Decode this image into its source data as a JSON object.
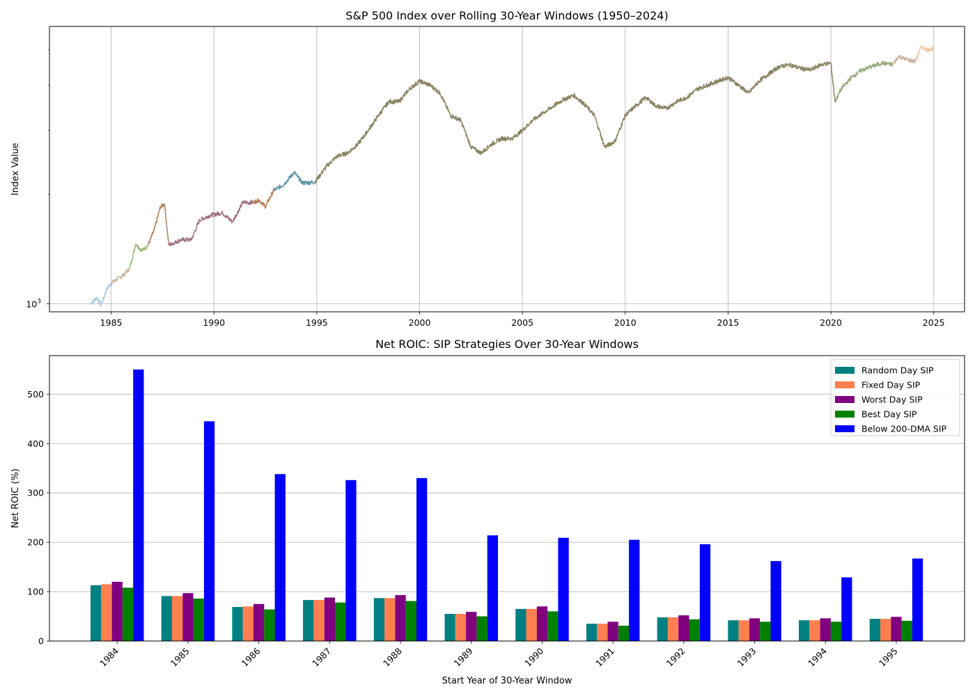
{
  "chart_data": [
    {
      "type": "line",
      "title": "S&P 500 Index over Rolling 30-Year Windows (1950–2024)",
      "xlabel": "",
      "ylabel": "Index Value",
      "yscale": "log",
      "grid": true,
      "xlim": [
        1982.0,
        2026.5
      ],
      "ylim": [
        950,
        5800
      ],
      "x_ticks": [
        "1985",
        "1990",
        "1995",
        "2000",
        "2005",
        "2010",
        "2015",
        "2020",
        "2025"
      ],
      "y_ticks": [
        {
          "label_base": "10",
          "label_exp": "3",
          "value": 1000
        }
      ],
      "series": [
        {
          "color": "#a7c9e6",
          "x": [
            1984.0,
            1984.3,
            1984.5,
            1984.8,
            1985.0
          ],
          "y": [
            1000,
            1040,
            990,
            1100,
            1140
          ]
        },
        {
          "color": "#c9b49e",
          "x": [
            1985.0,
            1985.3,
            1985.6,
            1985.9
          ],
          "y": [
            1140,
            1170,
            1200,
            1250
          ]
        },
        {
          "color": "#9fb87e",
          "x": [
            1985.9,
            1986.2,
            1986.5,
            1986.8
          ],
          "y": [
            1250,
            1460,
            1400,
            1450
          ]
        },
        {
          "color": "#b37e57",
          "x": [
            1986.8,
            1987.1,
            1987.4,
            1987.6,
            1987.8
          ],
          "y": [
            1450,
            1600,
            1850,
            1880,
            1450
          ]
        },
        {
          "color": "#a07181",
          "x": [
            1987.8,
            1988.4,
            1988.9,
            1989.3,
            1989.8,
            1990.4,
            1990.9,
            1991.4,
            1991.9
          ],
          "y": [
            1450,
            1500,
            1500,
            1700,
            1750,
            1780,
            1680,
            1900,
            1900
          ]
        },
        {
          "color": "#b48058",
          "x": [
            1991.9,
            1992.2,
            1992.5,
            1992.9
          ],
          "y": [
            1900,
            1930,
            1850,
            2050
          ]
        },
        {
          "color": "#5f93a4",
          "x": [
            1992.9,
            1993.4,
            1993.9,
            1994.3,
            1994.9
          ],
          "y": [
            2050,
            2130,
            2300,
            2150,
            2160
          ]
        },
        {
          "color": "#8a8464",
          "x": [
            1994.9,
            1995.5,
            1996.0,
            1996.5,
            1997.0,
            1997.5,
            1998.0,
            1998.5,
            1999.0,
            1999.5,
            2000.0,
            2000.5,
            2001.0,
            2001.5,
            2002.0,
            2002.5,
            2003.0,
            2003.5,
            2004.0,
            2004.5,
            2005.0,
            2005.5,
            2006.0,
            2006.5,
            2007.0,
            2007.5,
            2008.0,
            2008.5,
            2009.0,
            2009.5,
            2010.0,
            2010.5,
            2011.0,
            2011.5,
            2012.0,
            2012.5,
            2013.0,
            2013.5,
            2014.0,
            2014.5,
            2015.0,
            2015.5,
            2016.0,
            2016.5,
            2017.0,
            2017.5,
            2018.0,
            2018.5,
            2019.0,
            2019.5,
            2020.0,
            2020.2
          ],
          "y": [
            2160,
            2400,
            2550,
            2600,
            2750,
            3000,
            3300,
            3600,
            3600,
            3900,
            4100,
            4000,
            3800,
            3300,
            3200,
            2700,
            2600,
            2750,
            2850,
            2850,
            3000,
            3200,
            3350,
            3500,
            3650,
            3750,
            3550,
            3300,
            2700,
            2800,
            3300,
            3500,
            3700,
            3500,
            3450,
            3600,
            3700,
            3900,
            4000,
            4100,
            4200,
            4000,
            3800,
            4100,
            4300,
            4500,
            4550,
            4450,
            4400,
            4550,
            4600,
            3600
          ]
        },
        {
          "color": "#9aab82",
          "x": [
            2020.2,
            2020.5,
            2021.0,
            2021.5,
            2022.0,
            2022.5,
            2023.0
          ],
          "y": [
            3600,
            3900,
            4200,
            4400,
            4500,
            4600,
            4550
          ]
        },
        {
          "color": "#c9b4a4",
          "x": [
            2023.0,
            2023.3,
            2023.7,
            2024.1
          ],
          "y": [
            4550,
            4800,
            4700,
            4650
          ]
        },
        {
          "color": "#f2c79e",
          "x": [
            2024.1,
            2024.4,
            2024.7,
            2025.0
          ],
          "y": [
            4650,
            5100,
            5000,
            5050
          ]
        }
      ]
    },
    {
      "type": "bar",
      "title": "Net ROIC: SIP Strategies Over 30-Year Windows",
      "xlabel": "Start Year of 30-Year Window",
      "ylabel": "Net ROIC (%)",
      "grid": true,
      "legend": "top-right",
      "ylim": [
        0,
        578
      ],
      "y_ticks": [
        "0",
        "100",
        "200",
        "300",
        "400",
        "500"
      ],
      "categories": [
        "1984",
        "1985",
        "1986",
        "1987",
        "1988",
        "1989",
        "1990",
        "1991",
        "1992",
        "1993",
        "1994",
        "1995"
      ],
      "series": [
        {
          "name": "Random Day SIP",
          "color": "#008080",
          "values": [
            113,
            91,
            69,
            83,
            87,
            55,
            65,
            35,
            48,
            42,
            42,
            45
          ]
        },
        {
          "name": "Fixed Day SIP",
          "color": "#ff7f50",
          "values": [
            115,
            91,
            70,
            83,
            87,
            55,
            65,
            35,
            48,
            42,
            42,
            45
          ]
        },
        {
          "name": "Worst Day SIP",
          "color": "#800080",
          "values": [
            120,
            97,
            75,
            88,
            93,
            59,
            70,
            39,
            52,
            46,
            46,
            49
          ]
        },
        {
          "name": "Best Day SIP",
          "color": "#008000",
          "values": [
            108,
            86,
            64,
            78,
            81,
            50,
            60,
            31,
            44,
            39,
            39,
            41
          ]
        },
        {
          "name": "Below 200-DMA SIP",
          "color": "#0000ff",
          "values": [
            550,
            445,
            338,
            326,
            330,
            214,
            209,
            205,
            196,
            162,
            129,
            167
          ]
        }
      ]
    }
  ]
}
